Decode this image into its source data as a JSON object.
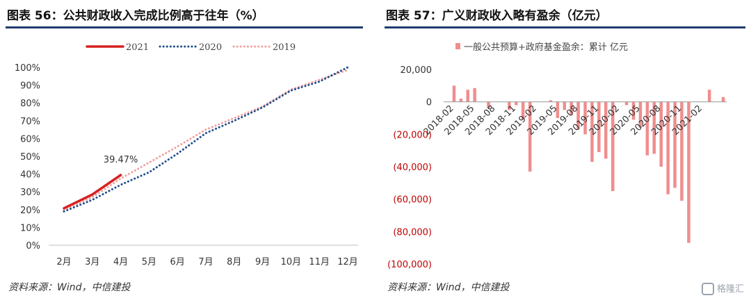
{
  "left": {
    "title": "图表 56：公共财政收入完成比例高于往年（%）",
    "source": "资料来源：Wind，中信建投",
    "chart_data": {
      "type": "line",
      "categories": [
        "2月",
        "3月",
        "4月",
        "5月",
        "6月",
        "7月",
        "8月",
        "9月",
        "10月",
        "11月",
        "12月"
      ],
      "ylim": [
        0,
        100
      ],
      "yticks": [
        "0%",
        "10%",
        "20%",
        "30%",
        "40%",
        "50%",
        "60%",
        "70%",
        "80%",
        "90%",
        "100%"
      ],
      "series": [
        {
          "name": "2021",
          "color": "#d62020",
          "style": "solid",
          "values": [
            20.8,
            28.5,
            39.47,
            null,
            null,
            null,
            null,
            null,
            null,
            null,
            null
          ]
        },
        {
          "name": "2020",
          "color": "#1f4e8c",
          "style": "dotted",
          "values": [
            19.0,
            25.5,
            34.0,
            41.0,
            51.5,
            63.0,
            70.0,
            77.5,
            87.0,
            92.0,
            100.0
          ]
        },
        {
          "name": "2019",
          "color": "#f0a0a0",
          "style": "dotted",
          "values": [
            19.8,
            27.0,
            37.5,
            46.5,
            55.5,
            65.0,
            71.5,
            78.0,
            87.5,
            93.0,
            98.5
          ]
        }
      ],
      "annotations": [
        {
          "text": "39.47%",
          "series": "2021",
          "category": "4月"
        }
      ],
      "legend": "top",
      "grid": false
    }
  },
  "right": {
    "title": "图表 57：广义财政收入略有盈余（亿元）",
    "source": "资料来源：Wind，中信建投",
    "chart_data": {
      "type": "bar",
      "series_name": "一般公共预算+政府基金盈余：累计 亿元",
      "color": "#f08e8e",
      "ylim": [
        -100000,
        20000
      ],
      "yticks": [
        {
          "value": 20000,
          "label": "20,000",
          "color": "#333333"
        },
        {
          "value": 0,
          "label": "0",
          "color": "#333333"
        },
        {
          "value": -20000,
          "label": "(20,000)",
          "color": "#c00000"
        },
        {
          "value": -40000,
          "label": "(40,000)",
          "color": "#c00000"
        },
        {
          "value": -60000,
          "label": "(60,000)",
          "color": "#c00000"
        },
        {
          "value": -80000,
          "label": "(80,000)",
          "color": "#c00000"
        },
        {
          "value": -100000,
          "label": "(100,000)",
          "color": "#c00000"
        }
      ],
      "x_start": "2018-01",
      "xtick_labels": [
        "2018-02",
        "2018-05",
        "2018-08",
        "2018-11",
        "2019-02",
        "2019-05",
        "2019-08",
        "2019-11",
        "2020-02",
        "2020-05",
        "2020-08",
        "2020-11",
        "2021-02"
      ],
      "values": [
        0,
        10000,
        2000,
        7500,
        8500,
        0,
        -4000,
        0,
        0,
        -5000,
        -2000,
        -11000,
        -43000,
        0,
        0,
        1000,
        -10000,
        -5000,
        -8000,
        -17000,
        -20000,
        -37000,
        -31000,
        -35000,
        -55000,
        0,
        -2000,
        -11000,
        -16000,
        -33000,
        -32000,
        -40000,
        -57000,
        -53000,
        -61000,
        -87000,
        0,
        0,
        7500,
        0,
        3000
      ],
      "legend": "top",
      "grid": false
    }
  },
  "watermark": "格隆汇"
}
